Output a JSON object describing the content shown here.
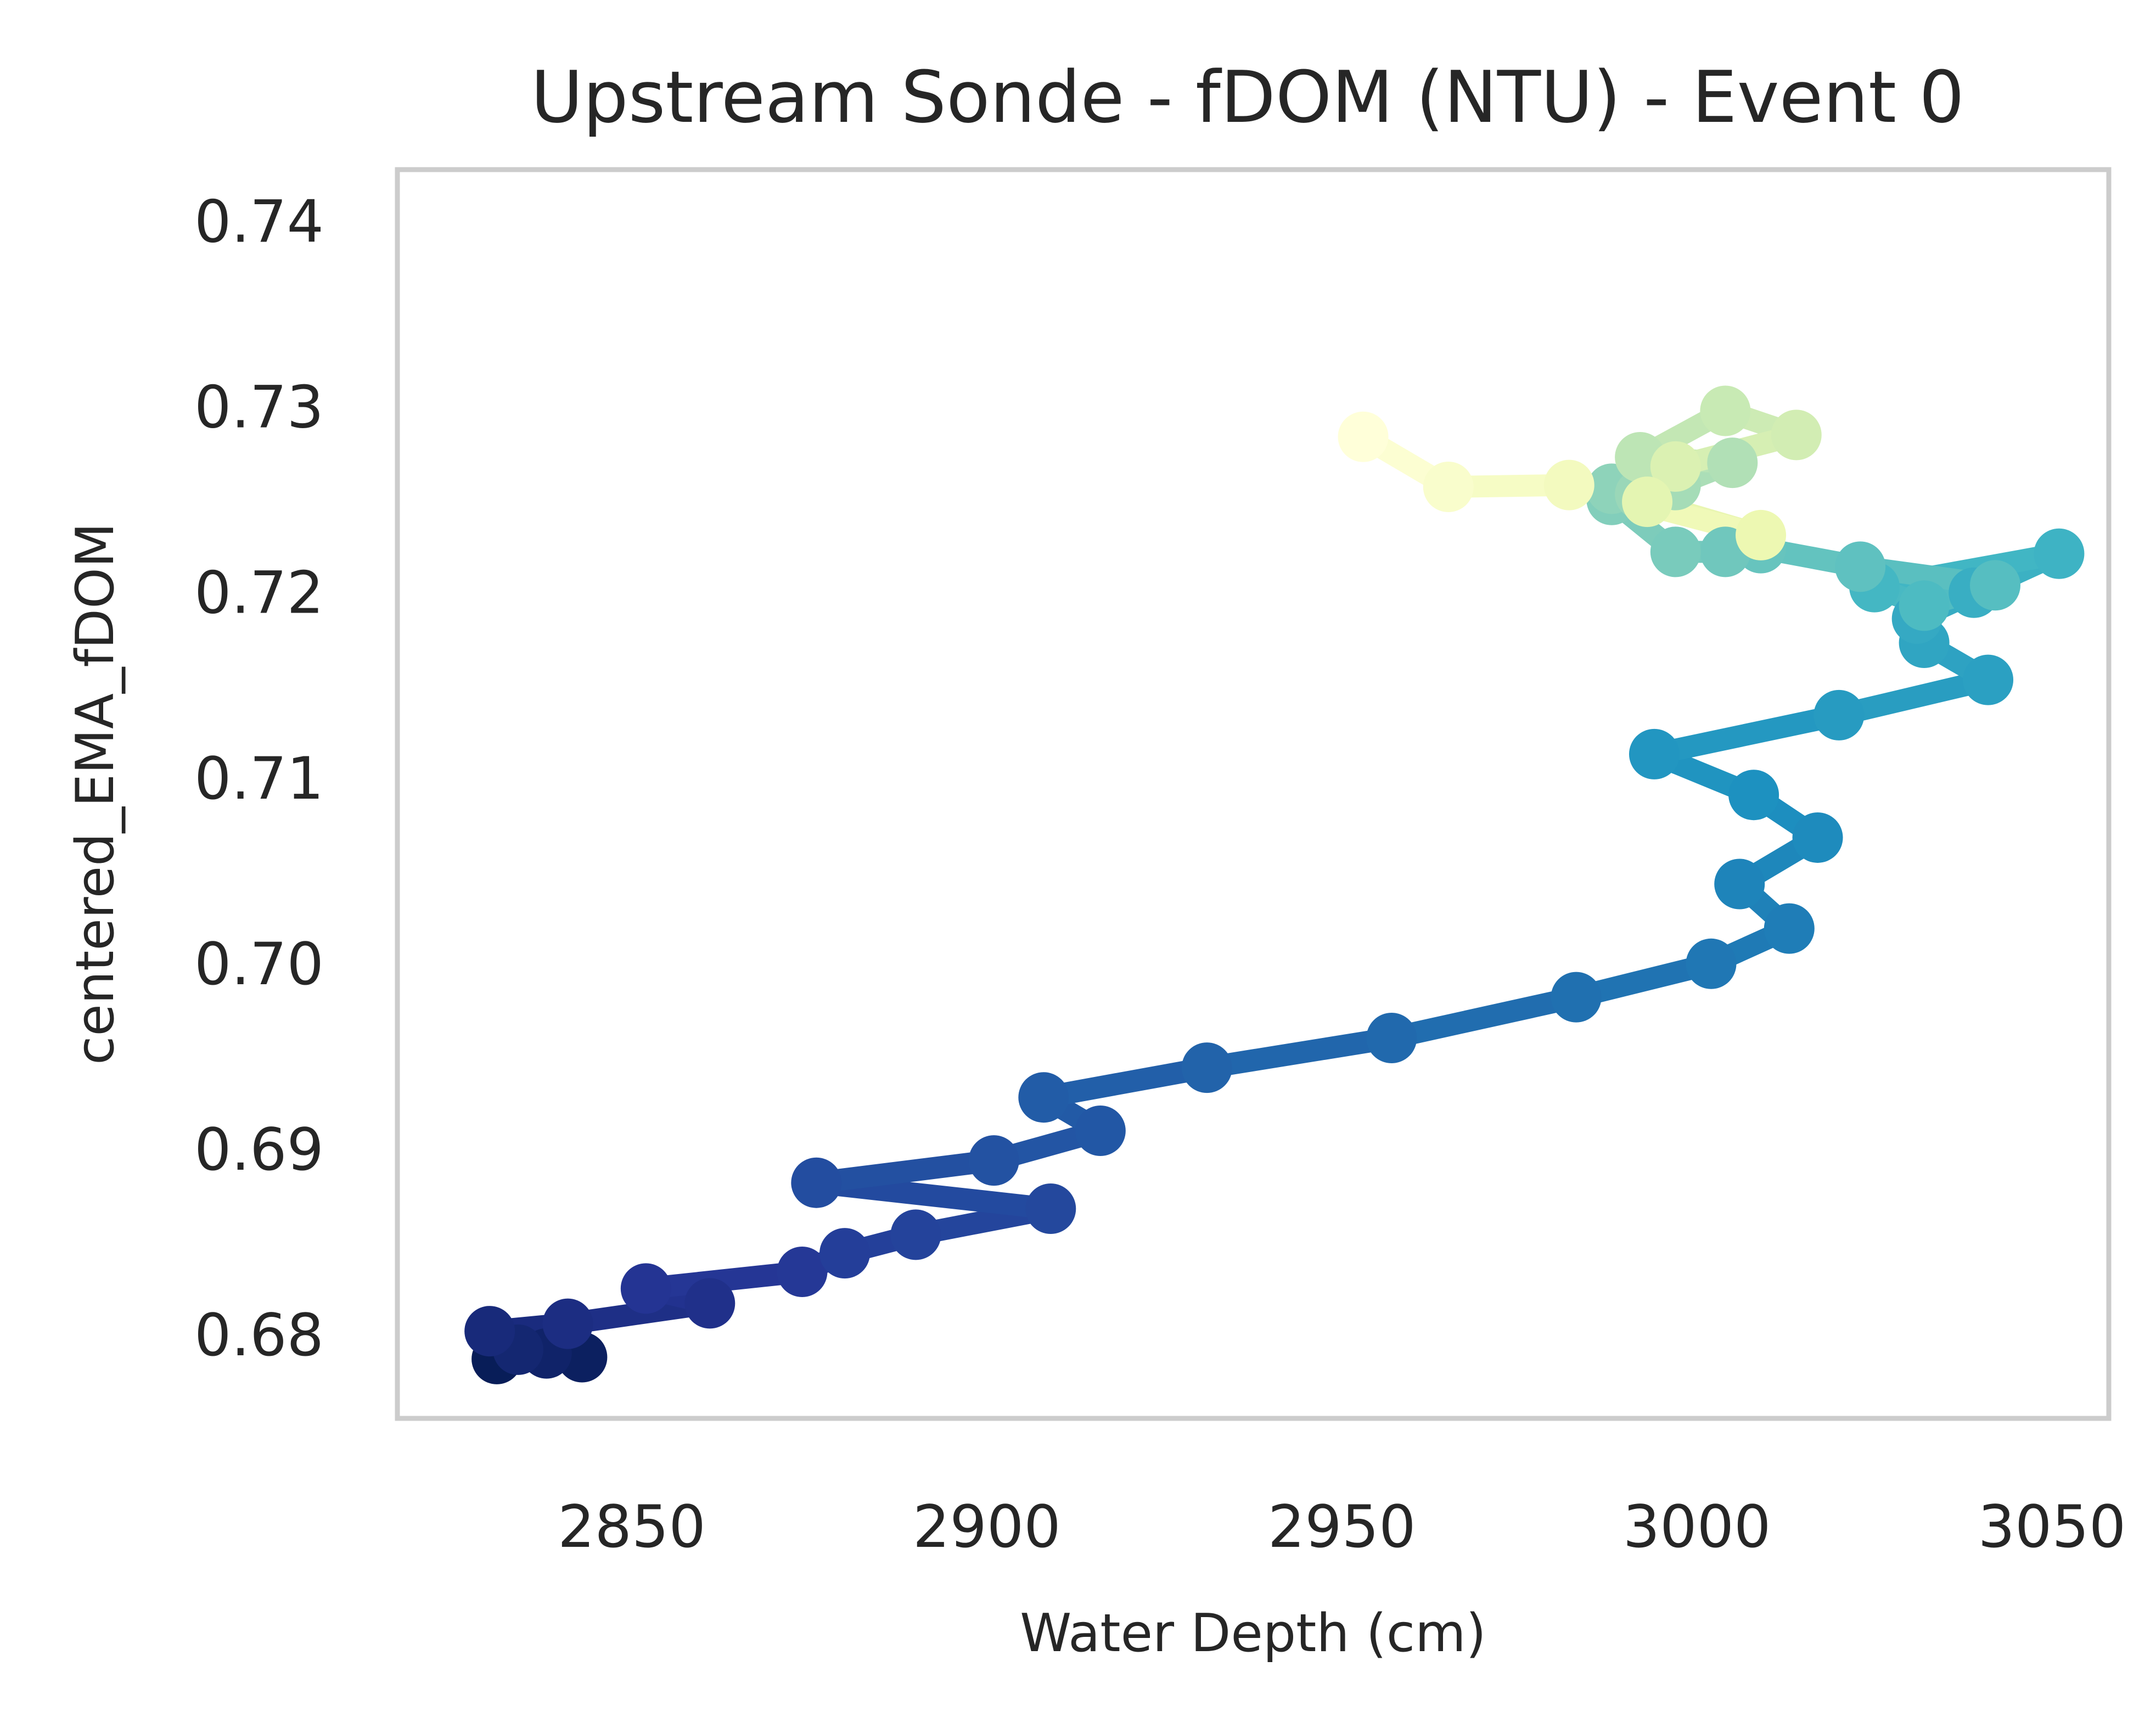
{
  "chart_data": {
    "type": "line",
    "title": "Upstream Sonde - fDOM (NTU) - Event 0",
    "xlabel": "Water Depth (cm)",
    "ylabel": "centered_EMA_fDOM",
    "xlim": [
      2817,
      3058
    ],
    "ylim": [
      0.6755,
      0.7428
    ],
    "xticks": [
      2850,
      2900,
      2950,
      3000,
      3050
    ],
    "yticks": [
      0.68,
      0.69,
      0.7,
      0.71,
      0.72,
      0.73,
      0.74
    ],
    "ytick_labels": [
      "0.68",
      "0.69",
      "0.70",
      "0.71",
      "0.72",
      "0.73",
      "0.74"
    ],
    "xtick_labels": [
      "2850",
      "2900",
      "2950",
      "3000",
      "3050"
    ],
    "grid": false,
    "colormap": "YlGnBu (dark blue at start, light yellow at end)",
    "series": [
      {
        "marker": "circle",
        "x": [
          2831,
          2843,
          2838,
          2834,
          2830,
          2841,
          2861,
          2852,
          2874,
          2880,
          2890,
          2909,
          2876,
          2901,
          2916,
          2908,
          2931,
          2957,
          2983,
          3002,
          3013,
          3006,
          3017,
          3008,
          2994,
          3020,
          3041,
          3032,
          3031,
          3039,
          3051,
          3025,
          3032,
          3042,
          3023,
          3009,
          3004,
          2997,
          2988,
          2988,
          2992,
          2997,
          3005,
          2992,
          3004,
          3014,
          2997,
          2993,
          3009,
          2982,
          2965,
          2953
        ],
        "y": [
          0.6787,
          0.6788,
          0.679,
          0.6792,
          0.6802,
          0.6806,
          0.6817,
          0.6825,
          0.6834,
          0.6844,
          0.6854,
          0.6868,
          0.6882,
          0.6894,
          0.691,
          0.6928,
          0.6944,
          0.696,
          0.6982,
          0.7,
          0.7019,
          0.7043,
          0.7068,
          0.7091,
          0.7113,
          0.7134,
          0.7153,
          0.7173,
          0.7186,
          0.72,
          0.7221,
          0.7203,
          0.7193,
          0.7204,
          0.7214,
          0.7224,
          0.7222,
          0.7222,
          0.725,
          0.7256,
          0.7253,
          0.7258,
          0.727,
          0.7273,
          0.7298,
          0.7285,
          0.7268,
          0.7249,
          0.7231,
          0.7258,
          0.7257,
          0.7284
        ]
      }
    ]
  }
}
